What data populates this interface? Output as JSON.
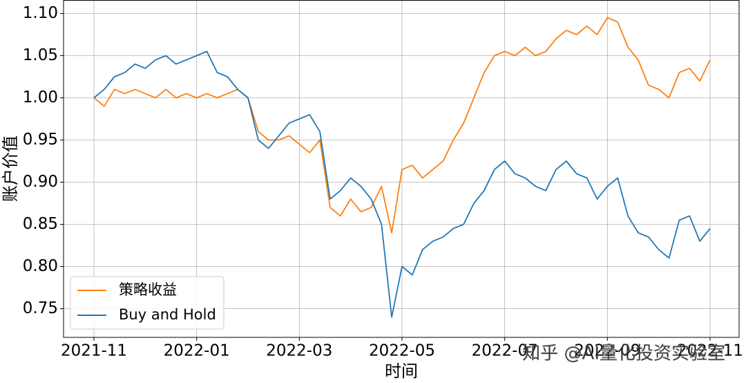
{
  "chart_data": {
    "type": "line",
    "xlabel": "时间",
    "ylabel": "账户价值",
    "watermark": "知乎 @AI量化投资实验室",
    "xticks": [
      "2021-11",
      "2022-01",
      "2022-03",
      "2022-05",
      "2022-07",
      "2022-09",
      "2022-11"
    ],
    "ylim": [
      0.716,
      1.116
    ],
    "yticks": [
      {
        "value": 0.75,
        "label": "0.75"
      },
      {
        "value": 0.8,
        "label": "0.80"
      },
      0.85,
      {
        "value": 0.9,
        "label": "0.90"
      },
      0.95,
      {
        "value": 1.0,
        "label": "1.00"
      },
      1.05,
      {
        "value": 1.1,
        "label": "1.10"
      }
    ],
    "grid": true,
    "legend": "lower left",
    "series": [
      {
        "name": "策略收益",
        "color": "#ff7f0e",
        "values": [
          1.0,
          0.99,
          1.01,
          1.005,
          1.01,
          1.005,
          1.0,
          1.01,
          1.0,
          1.005,
          1.0,
          1.005,
          1.0,
          1.005,
          1.01,
          1.0,
          0.96,
          0.95,
          0.95,
          0.955,
          0.945,
          0.935,
          0.95,
          0.87,
          0.86,
          0.88,
          0.865,
          0.87,
          0.895,
          0.84,
          0.915,
          0.92,
          0.905,
          0.915,
          0.925,
          0.95,
          0.97,
          1.0,
          1.03,
          1.05,
          1.055,
          1.05,
          1.06,
          1.05,
          1.055,
          1.07,
          1.08,
          1.075,
          1.085,
          1.075,
          1.095,
          1.09,
          1.06,
          1.045,
          1.015,
          1.01,
          1.0,
          1.03,
          1.035,
          1.02,
          1.045
        ]
      },
      {
        "name": "Buy and Hold",
        "color": "#1f77b4",
        "values": [
          1.0,
          1.01,
          1.025,
          1.03,
          1.04,
          1.035,
          1.045,
          1.05,
          1.04,
          1.045,
          1.05,
          1.055,
          1.03,
          1.025,
          1.01,
          1.0,
          0.95,
          0.94,
          0.955,
          0.97,
          0.975,
          0.98,
          0.96,
          0.88,
          0.89,
          0.905,
          0.895,
          0.88,
          0.85,
          0.74,
          0.8,
          0.79,
          0.82,
          0.83,
          0.835,
          0.845,
          0.85,
          0.875,
          0.89,
          0.915,
          0.925,
          0.91,
          0.905,
          0.895,
          0.89,
          0.915,
          0.925,
          0.91,
          0.905,
          0.88,
          0.895,
          0.905,
          0.86,
          0.84,
          0.835,
          0.82,
          0.81,
          0.855,
          0.86,
          0.83,
          0.845
        ]
      }
    ]
  }
}
